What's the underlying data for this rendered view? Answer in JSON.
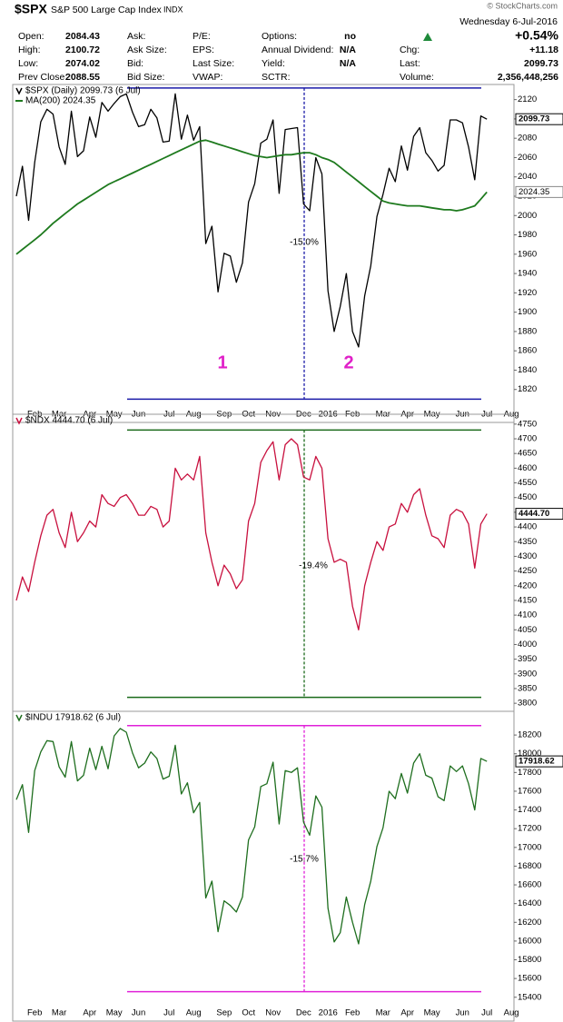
{
  "header": {
    "symbol": "$SPX",
    "name": "S&P 500 Large Cap Index",
    "exchange": "INDX",
    "date": "Wednesday 6-Jul-2016",
    "watermark": "© StockCharts.com",
    "quote": [
      [
        {
          "label": "Open:",
          "value": 2084.43
        },
        {
          "label": "Ask:"
        },
        {
          "label": "P/E:"
        },
        {
          "label": "Options:",
          "value": "no"
        },
        {
          "value": "+0.54%"
        }
      ],
      [
        {
          "label": "High:",
          "value": 2100.72
        },
        {
          "label": "Ask Size:"
        },
        {
          "label": "EPS:"
        },
        {
          "label": "Annual Dividend:",
          "value": "N/A"
        },
        {
          "label": "Chg:",
          "value": "+11.18"
        }
      ],
      [
        {
          "label": "Low:",
          "value": 2074.02
        },
        {
          "label": "Bid:"
        },
        {
          "label": "Last Size:"
        },
        {
          "label": "Yield:",
          "value": "N/A"
        },
        {
          "label": "Last:",
          "value": 2099.73
        }
      ],
      [
        {
          "label": "Prev Close:",
          "value": 2088.55
        },
        {
          "label": "Bid Size:"
        },
        {
          "label": "VWAP:"
        },
        {
          "label": "SCTR:"
        },
        {
          "label": "Volume:",
          "value": "2,356,448,256"
        }
      ]
    ]
  },
  "chart_data": [
    {
      "type": "line",
      "categories": [
        null,
        null,
        null,
        "Feb",
        null,
        null,
        null,
        "Mar",
        null,
        null,
        null,
        null,
        "Apr",
        null,
        null,
        null,
        "May",
        null,
        null,
        null,
        "Jun",
        null,
        null,
        null,
        null,
        "Jul",
        null,
        null,
        null,
        "Aug",
        null,
        null,
        null,
        null,
        "Sep",
        null,
        null,
        null,
        "Oct",
        null,
        null,
        null,
        "Nov",
        null,
        null,
        null,
        null,
        "Dec",
        null,
        null,
        null,
        "2016",
        null,
        null,
        null,
        "Feb",
        null,
        null,
        null,
        null,
        "Mar",
        null,
        null,
        null,
        "Apr",
        null,
        null,
        null,
        "May",
        null,
        null,
        null,
        null,
        "Jun",
        null,
        null,
        null,
        "Jul",
        null,
        null,
        null,
        "Aug"
      ],
      "series": [
        {
          "name": "$SPX (Daily) 2099.73 (6 Jul)",
          "color": "#000000",
          "last_label": "2099.73",
          "values": [
            2020,
            2051,
            1995,
            2055,
            2097,
            2110,
            2105,
            2071,
            2053,
            2108,
            2061,
            2067,
            2102,
            2081,
            2117,
            2108,
            2116,
            2123,
            2126,
            2107,
            2092,
            2094,
            2110,
            2101,
            2076,
            2077,
            2126,
            2079,
            2104,
            2078,
            2092,
            1971,
            1989,
            1921,
            1961,
            1958,
            1931,
            1951,
            2014,
            2033,
            2075,
            2079,
            2099,
            2023,
            2089,
            2090,
            2091,
            2012,
            2005,
            2060,
            2043,
            1922,
            1880,
            1906,
            1940,
            1880,
            1864,
            1917,
            1948,
            1999,
            2022,
            2049,
            2035,
            2072,
            2047,
            2082,
            2091,
            2065,
            2057,
            2046,
            2052,
            2099,
            2099,
            2096,
            2071,
            2037,
            2103,
            2099.73,
            null,
            null,
            null,
            null
          ]
        },
        {
          "name": "MA(200) 2024.35",
          "color": "#1e7a1e",
          "last_label": "2024.35",
          "values": [
            1960,
            1965,
            1970,
            1975,
            1980,
            1986,
            1992,
            1997,
            2002,
            2007,
            2012,
            2016,
            2020,
            2024,
            2028,
            2032,
            2035,
            2038,
            2041,
            2044,
            2047,
            2050,
            2053,
            2056,
            2059,
            2062,
            2065,
            2068,
            2071,
            2074,
            2077,
            2078,
            2076,
            2074,
            2072,
            2070,
            2068,
            2066,
            2064,
            2062,
            2061,
            2060,
            2061,
            2062,
            2063,
            2063,
            2064,
            2065,
            2065,
            2063,
            2060,
            2058,
            2055,
            2050,
            2045,
            2040,
            2035,
            2030,
            2025,
            2020,
            2015,
            2013,
            2012,
            2011,
            2010,
            2010,
            2010,
            2009,
            2008,
            2007,
            2006,
            2006,
            2005,
            2006,
            2008,
            2010,
            2017,
            2024.35,
            null,
            null,
            null,
            null
          ]
        }
      ],
      "ylim": [
        1800,
        2130
      ],
      "yticks": [
        1820,
        1840,
        1860,
        1880,
        1900,
        1920,
        1940,
        1960,
        1980,
        2000,
        2020,
        2040,
        2060,
        2080,
        2100,
        2120
      ],
      "grid": false,
      "reference_lines": [
        2132,
        1810
      ],
      "reference_color": "#1a1aa8",
      "annotations": [
        {
          "text": "-15.0%",
          "color": "#000000"
        },
        {
          "text": "1",
          "color": "#e020c8"
        },
        {
          "text": "2",
          "color": "#e020c8"
        }
      ]
    },
    {
      "type": "line",
      "series": [
        {
          "name": "$NDX 4444.70 (6 Jul)",
          "color": "#c8103e",
          "last_label": "4444.70",
          "values": [
            4150,
            4230,
            4180,
            4280,
            4370,
            4440,
            4460,
            4380,
            4330,
            4450,
            4350,
            4380,
            4420,
            4400,
            4510,
            4480,
            4470,
            4500,
            4510,
            4480,
            4440,
            4440,
            4470,
            4460,
            4400,
            4420,
            4600,
            4560,
            4580,
            4560,
            4640,
            4380,
            4280,
            4200,
            4270,
            4240,
            4190,
            4220,
            4420,
            4480,
            4620,
            4660,
            4690,
            4560,
            4680,
            4700,
            4680,
            4570,
            4560,
            4640,
            4600,
            4360,
            4280,
            4290,
            4280,
            4130,
            4050,
            4200,
            4280,
            4350,
            4320,
            4400,
            4410,
            4480,
            4450,
            4510,
            4530,
            4440,
            4370,
            4360,
            4330,
            4440,
            4460,
            4450,
            4410,
            4260,
            4410,
            4444.7,
            null,
            null,
            null,
            null
          ]
        }
      ],
      "ylim": [
        3785,
        4765
      ],
      "yticks": [
        3800,
        3850,
        3900,
        3950,
        4000,
        4050,
        4100,
        4150,
        4200,
        4250,
        4300,
        4350,
        4400,
        4450,
        4500,
        4550,
        4600,
        4650,
        4700,
        4750
      ],
      "grid": false,
      "reference_lines": [
        4730,
        3820
      ],
      "reference_color": "#1a6a1a",
      "annotations": [
        {
          "text": "-19.4%",
          "color": "#000000"
        }
      ]
    },
    {
      "type": "line",
      "categories": [
        null,
        null,
        null,
        "Feb",
        null,
        null,
        null,
        "Mar",
        null,
        null,
        null,
        null,
        "Apr",
        null,
        null,
        null,
        "May",
        null,
        null,
        null,
        "Jun",
        null,
        null,
        null,
        null,
        "Jul",
        null,
        null,
        null,
        "Aug",
        null,
        null,
        null,
        null,
        "Sep",
        null,
        null,
        null,
        "Oct",
        null,
        null,
        null,
        "Nov",
        null,
        null,
        null,
        null,
        "Dec",
        null,
        null,
        null,
        "2016",
        null,
        null,
        null,
        "Feb",
        null,
        null,
        null,
        null,
        "Mar",
        null,
        null,
        null,
        "Apr",
        null,
        null,
        null,
        "May",
        null,
        null,
        null,
        null,
        "Jun",
        null,
        null,
        null,
        "Jul",
        null,
        null,
        null,
        "Aug"
      ],
      "series": [
        {
          "name": "$INDU 17918.62 (6 Jul)",
          "color": "#1e6e1e",
          "last_label": "17918.62",
          "values": [
            17510,
            17670,
            17160,
            17820,
            18020,
            18140,
            18130,
            17860,
            17750,
            18130,
            17710,
            17770,
            18060,
            17830,
            18080,
            17840,
            18190,
            18270,
            18230,
            18010,
            17850,
            17900,
            18020,
            17950,
            17730,
            17760,
            18090,
            17570,
            17690,
            17370,
            17480,
            16460,
            16640,
            16100,
            16430,
            16380,
            16310,
            16470,
            17080,
            17220,
            17650,
            17680,
            17910,
            17250,
            17820,
            17800,
            17850,
            17270,
            17130,
            17550,
            17430,
            16350,
            15990,
            16090,
            16470,
            16200,
            15970,
            16390,
            16640,
            17010,
            17210,
            17600,
            17520,
            17790,
            17580,
            17900,
            18000,
            17770,
            17740,
            17540,
            17500,
            17870,
            17810,
            17870,
            17680,
            17400,
            17950,
            17918.62,
            null,
            null,
            null,
            null
          ]
        }
      ],
      "ylim": [
        15320,
        18395
      ],
      "yticks": [
        15400,
        15600,
        15800,
        16000,
        16200,
        16400,
        16600,
        16800,
        17000,
        17200,
        17400,
        17600,
        17800,
        18000,
        18200
      ],
      "grid": false,
      "reference_lines": [
        18300,
        15460
      ],
      "reference_color": "#e020d8",
      "annotations": [
        {
          "text": "-15.7%",
          "color": "#000000"
        }
      ]
    }
  ]
}
